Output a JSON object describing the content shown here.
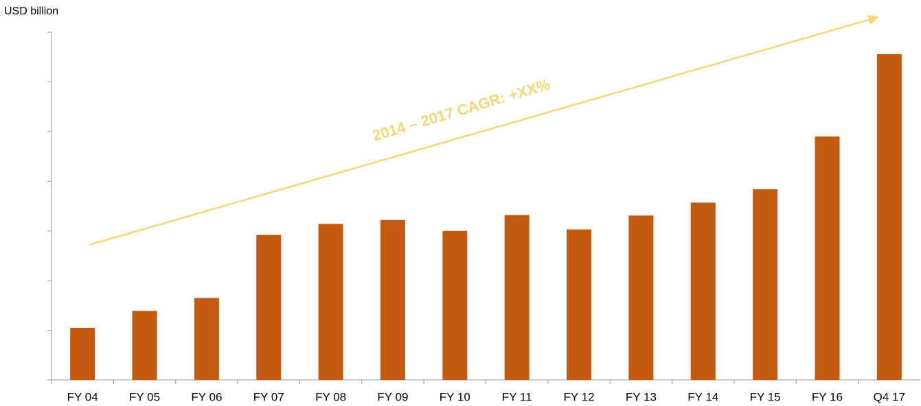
{
  "chart_data": {
    "type": "bar",
    "y_label": "USD billion",
    "annotation": "2014 – 2017 CAGR: +XX%",
    "annotation_color": "#f7d774",
    "categories": [
      "FY 04",
      "FY 05",
      "FY 06",
      "FY 07",
      "FY 08",
      "FY 09",
      "FY 10",
      "FY 11",
      "FY 12",
      "FY 13",
      "FY 14",
      "FY 15",
      "FY 16",
      "Q4 17"
    ],
    "values": [
      1.05,
      1.39,
      1.65,
      2.92,
      3.14,
      3.22,
      3.0,
      3.32,
      3.03,
      3.31,
      3.57,
      3.84,
      4.9,
      6.56
    ],
    "color": "#c55a11",
    "ylim": [
      0,
      7
    ],
    "yticks": [
      0,
      1,
      2,
      3,
      4,
      5,
      6,
      7
    ],
    "grid": false
  }
}
